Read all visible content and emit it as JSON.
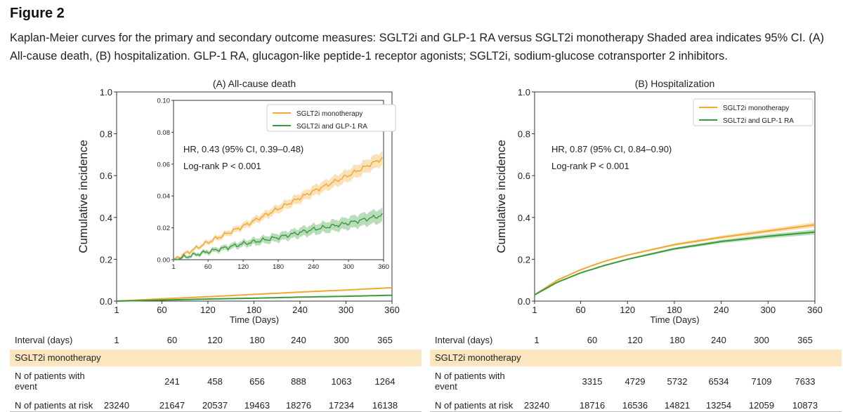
{
  "figure": {
    "title": "Figure 2",
    "caption": "Kaplan-Meier curves for the primary and secondary outcome measures: SGLT2i and GLP-1 RA versus SGLT2i monotherapy Shaded area indicates 95% CI. (A) All-cause death, (B) hospitalization. GLP-1 RA, glucagon-like peptide-1 receptor agonists; SGLT2i, sodium-glucose cotransporter 2 inhibitors."
  },
  "colors": {
    "mono": "#f0a830",
    "combo": "#3a9a3a",
    "band": "#fbe6c0"
  },
  "chart_data": [
    {
      "type": "line",
      "title": "(A) All-cause death",
      "xlabel": "Time (Days)",
      "ylabel": "Cumulative incidence",
      "xlim": [
        1,
        360
      ],
      "ylim": [
        0,
        1.0
      ],
      "xticks": [
        "1",
        "60",
        "120",
        "180",
        "240",
        "300",
        "360"
      ],
      "yticks": [
        "0.0",
        "0.2",
        "0.4",
        "0.6",
        "0.8",
        "1.0"
      ],
      "series": [
        {
          "name": "SGLT2i monotherapy",
          "x": [
            1,
            60,
            120,
            180,
            240,
            300,
            360
          ],
          "values": [
            0.0,
            0.011,
            0.021,
            0.032,
            0.043,
            0.053,
            0.064
          ]
        },
        {
          "name": "SGLT2i and GLP-1 RA",
          "x": [
            1,
            60,
            120,
            180,
            240,
            300,
            360
          ],
          "values": [
            0.0,
            0.005,
            0.01,
            0.014,
            0.019,
            0.023,
            0.028
          ]
        }
      ],
      "annotations": [
        "HR, 0.43 (95% CI, 0.39–0.48)",
        "Log-rank P < 0.001"
      ],
      "inset": {
        "xlim": [
          1,
          360
        ],
        "ylim": [
          0,
          0.1
        ],
        "xticks": [
          "1",
          "60",
          "120",
          "180",
          "240",
          "300",
          "360"
        ],
        "yticks": [
          "0.00",
          "0.02",
          "0.04",
          "0.06",
          "0.08",
          "0.10"
        ],
        "legend": [
          "SGLT2i monotherapy",
          "SGLT2i and GLP-1 RA"
        ]
      }
    },
    {
      "type": "line",
      "title": "(B) Hospitalization",
      "xlabel": "Time (Days)",
      "ylabel": "Cumulative incidence",
      "xlim": [
        1,
        360
      ],
      "ylim": [
        0,
        1.0
      ],
      "xticks": [
        "1",
        "60",
        "120",
        "180",
        "240",
        "300",
        "360"
      ],
      "yticks": [
        "0.0",
        "0.2",
        "0.4",
        "0.6",
        "0.8",
        "1.0"
      ],
      "series": [
        {
          "name": "SGLT2i monotherapy",
          "x": [
            1,
            30,
            60,
            90,
            120,
            180,
            240,
            300,
            360
          ],
          "values": [
            0.03,
            0.1,
            0.15,
            0.19,
            0.22,
            0.27,
            0.305,
            0.335,
            0.365
          ]
        },
        {
          "name": "SGLT2i and GLP-1 RA",
          "x": [
            1,
            30,
            60,
            90,
            120,
            180,
            240,
            300,
            360
          ],
          "values": [
            0.03,
            0.09,
            0.135,
            0.17,
            0.2,
            0.25,
            0.285,
            0.31,
            0.33
          ]
        }
      ],
      "annotations": [
        "HR, 0.87 (95% CI, 0.84–0.90)",
        "Log-rank P < 0.001"
      ],
      "legend": [
        "SGLT2i monotherapy",
        "SGLT2i and GLP-1 RA"
      ]
    }
  ],
  "tables": [
    {
      "header_label": "Interval (days)",
      "intervals": [
        "1",
        "60",
        "120",
        "180",
        "240",
        "300",
        "365"
      ],
      "group": "SGLT2i monotherapy",
      "event_label": "N of patients with event",
      "events": [
        "",
        "241",
        "458",
        "656",
        "888",
        "1063",
        "1264"
      ],
      "risk_label": "N of patients at risk",
      "at_risk": [
        "23240",
        "21647",
        "20537",
        "19463",
        "18276",
        "17234",
        "16138"
      ]
    },
    {
      "header_label": "Interval (days)",
      "intervals": [
        "1",
        "60",
        "120",
        "180",
        "240",
        "300",
        "365"
      ],
      "group": "SGLT2i monotherapy",
      "event_label": "N of patients with event",
      "events": [
        "",
        "3315",
        "4729",
        "5732",
        "6534",
        "7109",
        "7633"
      ],
      "risk_label": "N of patients at risk",
      "at_risk": [
        "23240",
        "18716",
        "16536",
        "14821",
        "13254",
        "12059",
        "10873"
      ]
    }
  ]
}
